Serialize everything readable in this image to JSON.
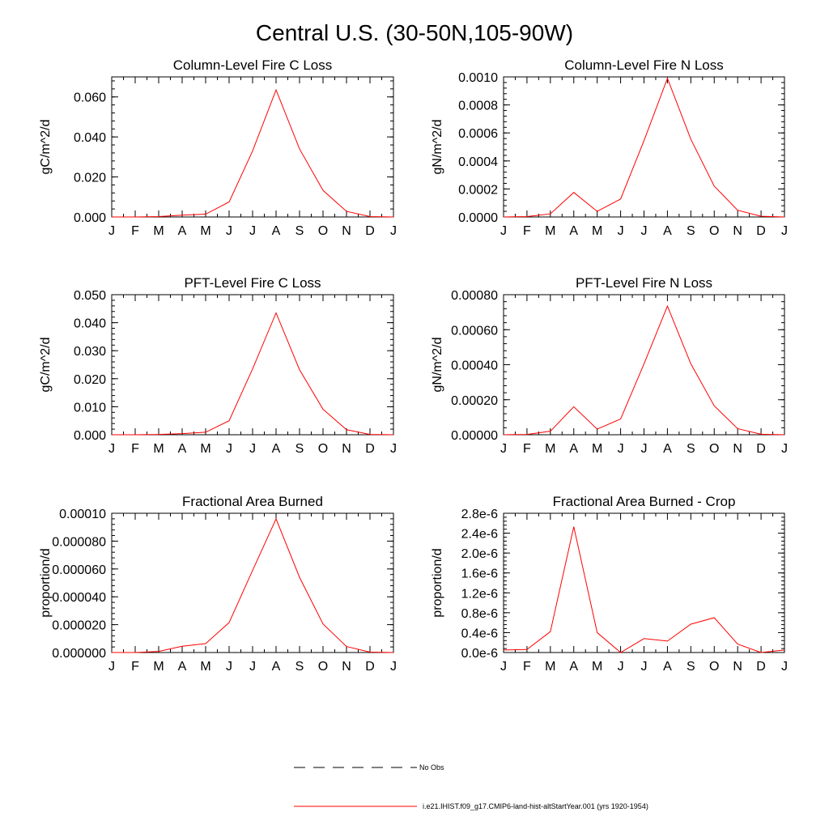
{
  "title": "Central U.S. (30-50N,105-90W)",
  "colors": {
    "series": "#ff0000",
    "axes": "#000000",
    "legend_obs": "#000000"
  },
  "chart_data": [
    {
      "type": "line",
      "title": "Column-Level Fire C Loss",
      "ylabel": "gC/m^2/d",
      "xlabel": "",
      "categories": [
        "J",
        "F",
        "M",
        "A",
        "M",
        "J",
        "J",
        "A",
        "S",
        "O",
        "N",
        "D",
        "J"
      ],
      "ylim": [
        0,
        0.07
      ],
      "yticks": [
        0,
        0.02,
        0.04,
        0.06
      ],
      "ytick_labels": [
        "0.000",
        "0.020",
        "0.040",
        "0.060"
      ],
      "series": [
        {
          "values": [
            0,
            0,
            0.0002,
            0.0009,
            0.0014,
            0.0075,
            0.033,
            0.0635,
            0.034,
            0.0133,
            0.0028,
            0.0002,
            0
          ]
        }
      ],
      "grid": false
    },
    {
      "type": "line",
      "title": "Column-Level Fire N Loss",
      "ylabel": "gN/m^2/d",
      "xlabel": "",
      "categories": [
        "J",
        "F",
        "M",
        "A",
        "M",
        "J",
        "J",
        "A",
        "S",
        "O",
        "N",
        "D",
        "J"
      ],
      "ylim": [
        0,
        0.001
      ],
      "yticks": [
        0,
        0.0002,
        0.0004,
        0.0006,
        0.0008,
        0.001
      ],
      "ytick_labels": [
        "0.0000",
        "0.0002",
        "0.0004",
        "0.0006",
        "0.0008",
        "0.0010"
      ],
      "series": [
        {
          "values": [
            0,
            3e-06,
            2.2e-05,
            0.000175,
            4e-05,
            0.000128,
            0.000545,
            0.00099,
            0.000555,
            0.00022,
            4.8e-05,
            5e-06,
            0
          ]
        }
      ],
      "grid": false
    },
    {
      "type": "line",
      "title": "PFT-Level Fire C Loss",
      "ylabel": "gC/m^2/d",
      "xlabel": "",
      "categories": [
        "J",
        "F",
        "M",
        "A",
        "M",
        "J",
        "J",
        "A",
        "S",
        "O",
        "N",
        "D",
        "J"
      ],
      "ylim": [
        0,
        0.05
      ],
      "yticks": [
        0,
        0.01,
        0.02,
        0.03,
        0.04,
        0.05
      ],
      "ytick_labels": [
        "0.000",
        "0.010",
        "0.020",
        "0.030",
        "0.040",
        "0.050"
      ],
      "series": [
        {
          "values": [
            0,
            0,
            0.0001,
            0.0004,
            0.0009,
            0.005,
            0.0235,
            0.0435,
            0.0232,
            0.0091,
            0.0018,
            0.0001,
            0
          ]
        }
      ],
      "grid": false
    },
    {
      "type": "line",
      "title": "PFT-Level Fire N Loss",
      "ylabel": "gN/m^2/d",
      "xlabel": "",
      "categories": [
        "J",
        "F",
        "M",
        "A",
        "M",
        "J",
        "J",
        "A",
        "S",
        "O",
        "N",
        "D",
        "J"
      ],
      "ylim": [
        0,
        0.0008
      ],
      "yticks": [
        0,
        0.0002,
        0.0004,
        0.0006,
        0.0008
      ],
      "ytick_labels": [
        "0.00000",
        "0.00020",
        "0.00040",
        "0.00060",
        "0.00080"
      ],
      "series": [
        {
          "values": [
            0,
            2e-06,
            2e-05,
            0.00016,
            3.2e-05,
            9e-05,
            0.000405,
            0.000735,
            0.000405,
            0.000165,
            3.5e-05,
            3e-06,
            0
          ]
        }
      ],
      "grid": false
    },
    {
      "type": "line",
      "title": "Fractional Area Burned",
      "ylabel": "proportion/d",
      "xlabel": "",
      "categories": [
        "J",
        "F",
        "M",
        "A",
        "M",
        "J",
        "J",
        "A",
        "S",
        "O",
        "N",
        "D",
        "J"
      ],
      "ylim": [
        0,
        0.0001
      ],
      "yticks": [
        0,
        2e-05,
        4e-05,
        6e-05,
        8e-05,
        0.0001
      ],
      "ytick_labels": [
        "0.000000",
        "0.000020",
        "0.000040",
        "0.000060",
        "0.000080",
        "0.00010"
      ],
      "series": [
        {
          "values": [
            0,
            0,
            8e-07,
            4.5e-06,
            6.4e-06,
            2.15e-05,
            5.9e-05,
            9.6e-05,
            5.4e-05,
            2.05e-05,
            4.3e-06,
            3e-07,
            0
          ]
        }
      ],
      "grid": false
    },
    {
      "type": "line",
      "title": "Fractional Area Burned - Crop",
      "ylabel": "proportion/d",
      "xlabel": "",
      "categories": [
        "J",
        "F",
        "M",
        "A",
        "M",
        "J",
        "J",
        "A",
        "S",
        "O",
        "N",
        "D",
        "J"
      ],
      "ylim": [
        0,
        2.8e-06
      ],
      "yticks": [
        0,
        4e-07,
        8e-07,
        1.2e-06,
        1.6e-06,
        2e-06,
        2.4e-06,
        2.8e-06
      ],
      "ytick_labels": [
        "0.0e-6",
        "0.4e-6",
        "0.8e-6",
        "1.2e-6",
        "1.6e-6",
        "2.0e-6",
        "2.4e-6",
        "2.8e-6"
      ],
      "series": [
        {
          "values": [
            5e-08,
            6e-08,
            4.2e-07,
            2.53e-06,
            4e-07,
            0.0,
            2.8e-07,
            2.3e-07,
            5.7e-07,
            7e-07,
            1.7e-07,
            0.0,
            5e-08
          ]
        }
      ],
      "grid": false
    }
  ],
  "legend": [
    {
      "label": "No Obs",
      "style": "dashed"
    },
    {
      "label": "i.e21.IHIST.f09_g17.CMIP6-land-hist-altStartYear.001 (yrs 1920-1954)",
      "style": "solid"
    }
  ]
}
